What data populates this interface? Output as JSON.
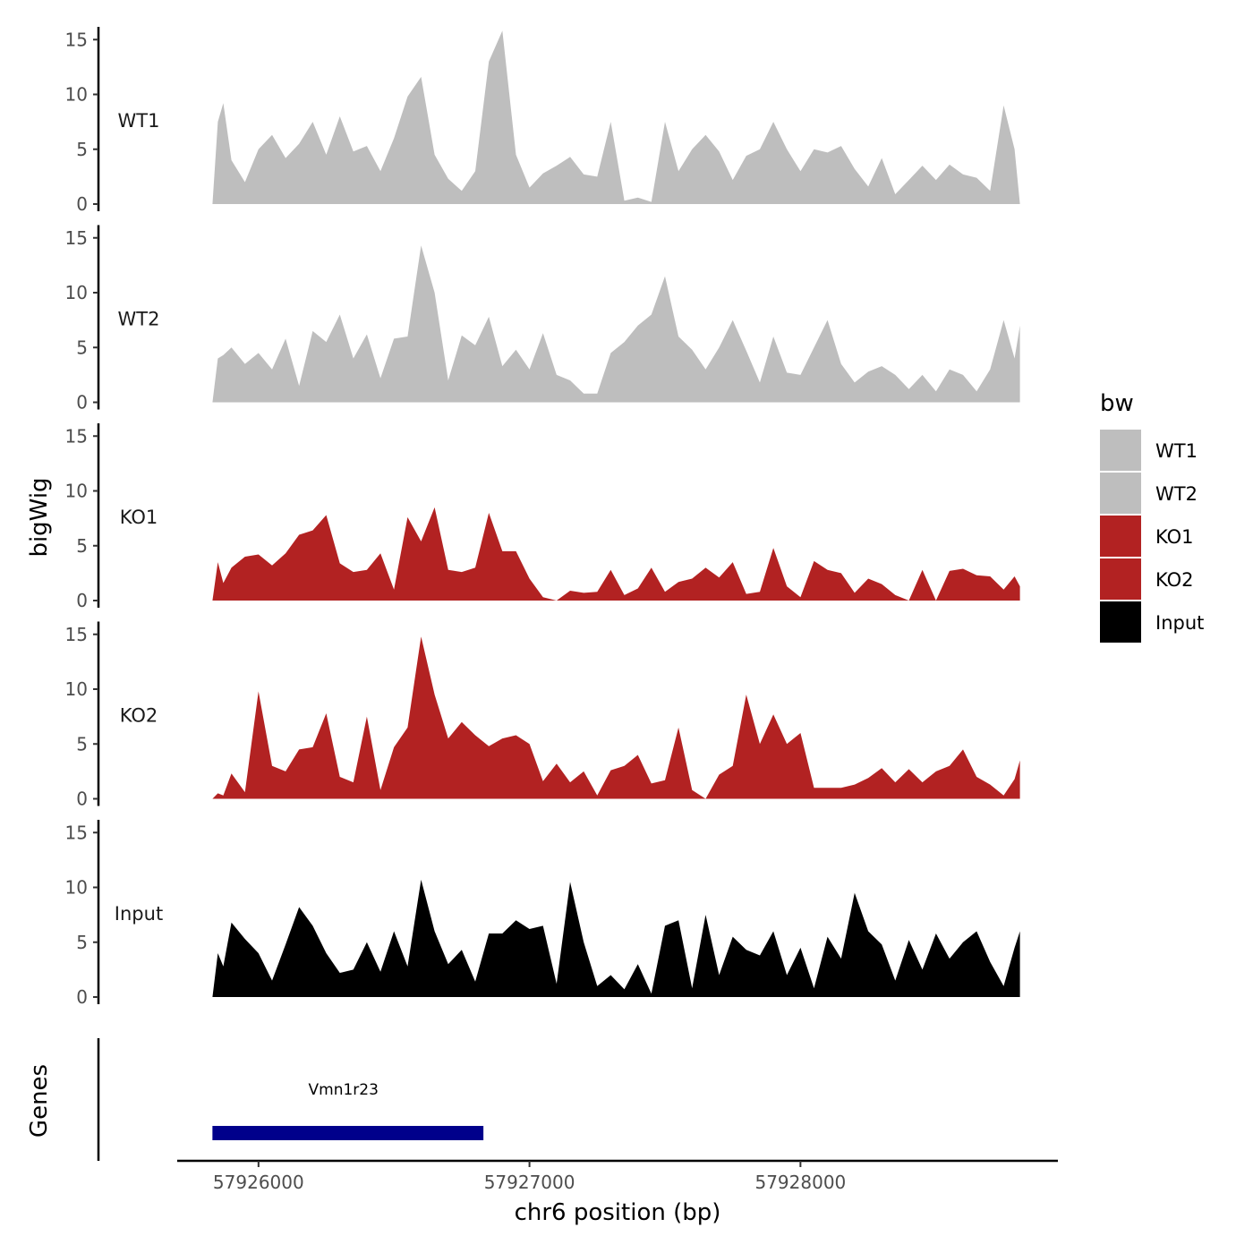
{
  "chart_data": {
    "type": "area",
    "title": "",
    "xlabel": "chr6 position (bp)",
    "ylabel": "bigWig",
    "genes_label": "Genes",
    "xlim": [
      57925700,
      57928950
    ],
    "ylim": [
      0,
      16
    ],
    "x_ticks": [
      57926000,
      57927000,
      57928000
    ],
    "x_tick_labels": [
      "57926000",
      "57927000",
      "57928000"
    ],
    "y_ticks": [
      0,
      5,
      10,
      15
    ],
    "y_tick_labels": [
      "0",
      "5",
      "10",
      "15"
    ],
    "legend": {
      "title": "bw",
      "position": "right",
      "entries": [
        {
          "label": "WT1",
          "color": "#bebebe"
        },
        {
          "label": "WT2",
          "color": "#bebebe"
        },
        {
          "label": "KO1",
          "color": "#b22222"
        },
        {
          "label": "KO2",
          "color": "#b22222"
        },
        {
          "label": "Input",
          "color": "#000000"
        }
      ]
    },
    "x": [
      57925830,
      57925850,
      57925870,
      57925900,
      57925950,
      57926000,
      57926050,
      57926100,
      57926150,
      57926200,
      57926250,
      57926300,
      57926350,
      57926400,
      57926450,
      57926500,
      57926550,
      57926600,
      57926650,
      57926700,
      57926750,
      57926800,
      57926850,
      57926900,
      57926950,
      57927000,
      57927050,
      57927100,
      57927150,
      57927200,
      57927250,
      57927300,
      57927350,
      57927400,
      57927450,
      57927500,
      57927550,
      57927600,
      57927650,
      57927700,
      57927750,
      57927800,
      57927850,
      57927900,
      57927950,
      57928000,
      57928050,
      57928100,
      57928150,
      57928200,
      57928250,
      57928300,
      57928350,
      57928400,
      57928450,
      57928500,
      57928550,
      57928600,
      57928650,
      57928700,
      57928750,
      57928790,
      57928810
    ],
    "series": [
      {
        "name": "WT1",
        "color": "#bebebe",
        "values": [
          0,
          7.5,
          9.2,
          4,
          2,
          5,
          6.3,
          4.2,
          5.5,
          7.5,
          4.5,
          8,
          4.8,
          5.3,
          3,
          6,
          9.8,
          11.6,
          4.5,
          2.3,
          1.2,
          3,
          13,
          15.8,
          4.5,
          1.5,
          2.8,
          3.5,
          4.3,
          2.7,
          2.5,
          7.5,
          0.3,
          0.6,
          0.2,
          7.5,
          3,
          5,
          6.3,
          4.8,
          2.2,
          4.4,
          5,
          7.5,
          5,
          3,
          5,
          4.7,
          5.3,
          3.2,
          1.6,
          4.2,
          0.9,
          2.2,
          3.5,
          2.2,
          3.6,
          2.7,
          2.4,
          1.2,
          9,
          5,
          0
        ]
      },
      {
        "name": "WT2",
        "color": "#bebebe",
        "values": [
          0,
          4,
          4.3,
          5,
          3.5,
          4.5,
          3,
          5.8,
          1.5,
          6.5,
          5.5,
          8,
          4,
          6.2,
          2.2,
          5.8,
          6,
          14.3,
          10,
          2,
          6.1,
          5.2,
          7.8,
          3.3,
          4.8,
          3,
          6.3,
          2.5,
          2,
          0.8,
          0.8,
          4.5,
          5.5,
          7,
          8,
          11.5,
          6,
          4.8,
          3,
          5,
          7.5,
          4.7,
          1.8,
          6,
          2.7,
          2.5,
          5,
          7.5,
          3.5,
          1.8,
          2.8,
          3.3,
          2.5,
          1.2,
          2.5,
          1,
          3,
          2.5,
          1,
          3,
          7.5,
          4,
          7
        ]
      },
      {
        "name": "KO1",
        "color": "#b22222",
        "values": [
          0,
          3.5,
          1.6,
          3,
          4,
          4.2,
          3.2,
          4.3,
          6,
          6.4,
          7.8,
          3.4,
          2.6,
          2.8,
          4.3,
          1,
          7.6,
          5.4,
          8.5,
          2.8,
          2.6,
          3,
          8,
          4.5,
          4.5,
          2,
          0.3,
          0,
          0.9,
          0.7,
          0.8,
          2.8,
          0.5,
          1.1,
          3,
          0.8,
          1.7,
          2,
          3,
          2.1,
          3.5,
          0.6,
          0.8,
          4.8,
          1.3,
          0.3,
          3.6,
          2.8,
          2.5,
          0.7,
          2,
          1.5,
          0.5,
          0,
          2.8,
          0,
          2.7,
          2.9,
          2.3,
          2.2,
          1,
          2.2,
          1.3
        ]
      },
      {
        "name": "KO2",
        "color": "#b22222",
        "values": [
          0,
          0.5,
          0.3,
          2.3,
          0.6,
          9.8,
          3,
          2.5,
          4.5,
          4.7,
          7.8,
          2,
          1.5,
          7.5,
          0.8,
          4.7,
          6.5,
          14.8,
          9.5,
          5.5,
          7,
          5.8,
          4.8,
          5.5,
          5.8,
          5,
          1.6,
          3.2,
          1.5,
          2.5,
          0.3,
          2.6,
          3,
          4,
          1.4,
          1.7,
          6.5,
          0.8,
          0,
          2.2,
          3,
          9.5,
          5,
          7.7,
          5,
          6,
          1,
          1,
          1,
          1.3,
          1.9,
          2.8,
          1.5,
          2.7,
          1.5,
          2.5,
          3,
          4.5,
          2,
          1.3,
          0.3,
          1.8,
          3.5
        ]
      },
      {
        "name": "Input",
        "color": "#000000",
        "values": [
          0,
          4,
          2.8,
          6.8,
          5.3,
          4,
          1.5,
          4.8,
          8.2,
          6.5,
          4,
          2.2,
          2.5,
          5,
          2.3,
          6,
          2.8,
          10.7,
          6,
          3,
          4.3,
          1.4,
          5.8,
          5.8,
          7,
          6.2,
          6.5,
          1.2,
          10.5,
          5,
          1,
          2,
          0.7,
          3,
          0.3,
          6.5,
          7,
          0.8,
          7.5,
          2,
          5.5,
          4.3,
          3.8,
          6,
          2,
          4.5,
          0.8,
          5.5,
          3.5,
          9.5,
          6,
          4.8,
          1.5,
          5.2,
          2.5,
          5.8,
          3.5,
          5,
          6,
          3.2,
          1,
          4.5,
          6
        ]
      }
    ],
    "genes": [
      {
        "name": "Vmn1r23",
        "start": 57925830,
        "end": 57926830,
        "color": "#00008b"
      }
    ]
  }
}
